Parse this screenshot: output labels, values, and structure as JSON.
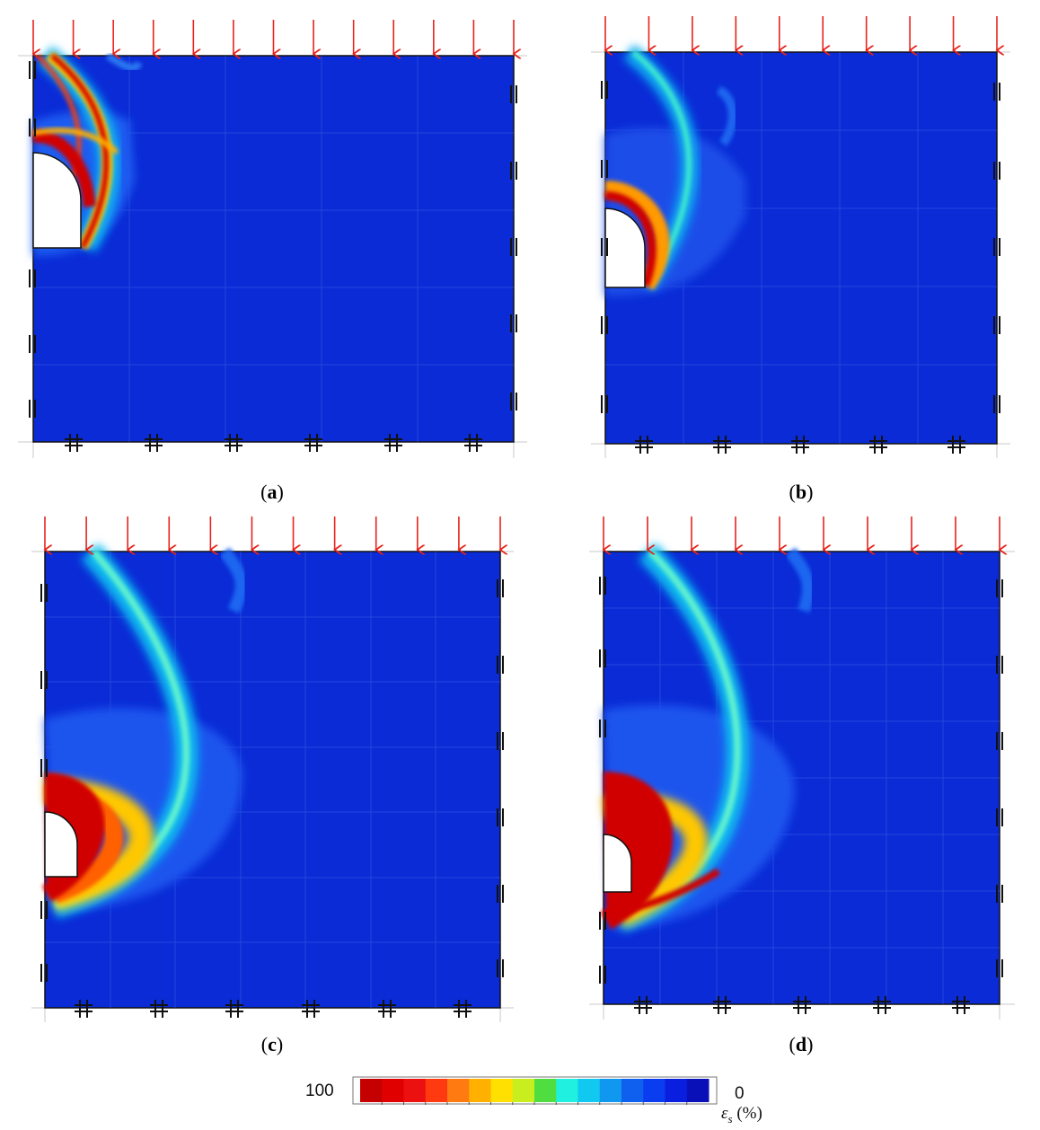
{
  "figure": {
    "panels": [
      {
        "id": "a",
        "caption_open": "(",
        "caption_letter": "a",
        "caption_close": ")"
      },
      {
        "id": "b",
        "caption_open": "(",
        "caption_letter": "b",
        "caption_close": ")"
      },
      {
        "id": "c",
        "caption_open": "(",
        "caption_letter": "c",
        "caption_close": ")"
      },
      {
        "id": "d",
        "caption_open": "(",
        "caption_letter": "d",
        "caption_close": ")"
      }
    ],
    "load_arrow_color": "#e8231b",
    "field_color": "#0a2bd6"
  },
  "colorbar": {
    "max_label": "100",
    "min_label": "0",
    "symbol": "ε",
    "symbol_sub": "s",
    "unit": " (%)",
    "colors": [
      "#c40000",
      "#e00000",
      "#ec1010",
      "#ff3a10",
      "#ff7a10",
      "#ffb000",
      "#ffe000",
      "#c8ee20",
      "#50dd40",
      "#20f0e0",
      "#10c8f0",
      "#1098f0",
      "#1060f0",
      "#0a3cf0",
      "#0a1ee0",
      "#0a10b8"
    ]
  }
}
